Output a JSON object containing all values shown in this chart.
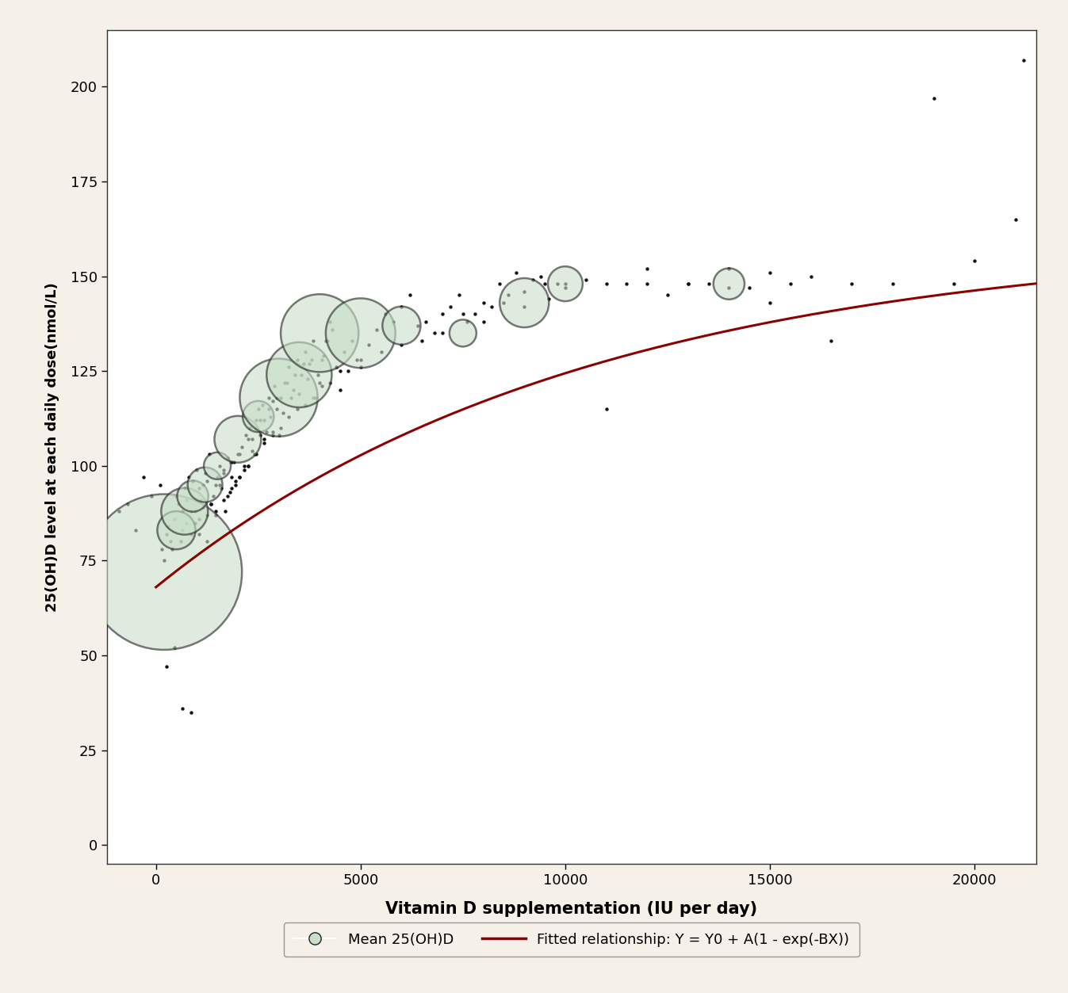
{
  "background_color": "#f5f0e8",
  "plot_bg_color": "#ffffff",
  "xlabel": "Vitamin D supplementation (IU per day)",
  "ylabel": "25(OH)D level at each daily dose(nmol/L)",
  "xlabel_fontsize": 15,
  "ylabel_fontsize": 13,
  "xlim": [
    -1200,
    21500
  ],
  "ylim": [
    -5,
    215
  ],
  "xticks": [
    0,
    5000,
    10000,
    15000,
    20000
  ],
  "yticks": [
    0,
    25,
    50,
    75,
    100,
    125,
    150,
    175,
    200
  ],
  "curve_Y0": 68.0,
  "curve_A": 92.0,
  "curve_B": 9.5e-05,
  "curve_color": "#8b0000",
  "curve_linewidth": 2.2,
  "bubble_x": [
    200,
    500,
    700,
    900,
    1200,
    1500,
    2000,
    2500,
    3000,
    3500,
    4000,
    5000,
    6000,
    7500,
    9000,
    10000,
    14000
  ],
  "bubble_y": [
    72,
    83,
    88,
    92,
    95,
    100,
    107,
    113,
    118,
    124,
    135,
    135,
    137,
    135,
    143,
    148,
    148
  ],
  "bubble_size": [
    20000,
    1200,
    1800,
    800,
    1000,
    600,
    1800,
    800,
    5000,
    3500,
    5000,
    4000,
    1200,
    600,
    2000,
    1000,
    800
  ],
  "bubble_facecolor": "#c8dfc8",
  "bubble_edgecolor": "#222222",
  "bubble_alpha": 0.6,
  "bubble_linewidth": 1.8,
  "scatter_x": [
    -900,
    -700,
    -500,
    -300,
    -100,
    100,
    200,
    300,
    400,
    500,
    600,
    650,
    700,
    750,
    800,
    850,
    900,
    950,
    1000,
    1050,
    1100,
    1150,
    1200,
    1250,
    1300,
    1350,
    1400,
    1450,
    1500,
    1550,
    1600,
    1650,
    1700,
    1750,
    1800,
    1850,
    1900,
    1950,
    2000,
    2050,
    2100,
    2150,
    2200,
    2250,
    2300,
    2350,
    2400,
    2450,
    2500,
    2550,
    2600,
    2650,
    2700,
    2750,
    2800,
    2850,
    2900,
    2950,
    3000,
    3100,
    3200,
    3300,
    3400,
    3500,
    3600,
    3700,
    3800,
    3900,
    4000,
    4100,
    4200,
    4300,
    4400,
    4500,
    4600,
    4700,
    4800,
    4900,
    5000,
    5200,
    5400,
    5600,
    5800,
    6000,
    6200,
    6400,
    6600,
    6800,
    7000,
    7200,
    7400,
    7600,
    7800,
    8000,
    8200,
    8400,
    8600,
    8800,
    9000,
    9200,
    9400,
    9600,
    9800,
    10000,
    10500,
    11000,
    11500,
    12000,
    12500,
    13000,
    13500,
    14000,
    14500,
    15000,
    15500,
    16000,
    16500,
    17000,
    18000,
    19000,
    19500,
    20000,
    21000,
    21200,
    150,
    250,
    350,
    450,
    550,
    650,
    750,
    850,
    950,
    1050,
    1150,
    1250,
    1350,
    1450,
    1550,
    1650,
    1750,
    1850,
    1950,
    2050,
    2150,
    2250,
    2350,
    2450,
    2550,
    2650,
    2750,
    2850,
    2950,
    3050,
    3150,
    3250,
    3350,
    3450,
    3550,
    3650,
    3750,
    3850,
    3950,
    4050,
    4150,
    4250,
    250,
    450,
    650,
    850,
    1050,
    1250,
    1450,
    1650,
    1850,
    2050,
    2250,
    2450,
    2650,
    2850,
    3050,
    3250,
    3450,
    3650,
    3850,
    4050,
    4250,
    4500,
    5000,
    5500,
    6000,
    6500,
    7000,
    7500,
    8000,
    8500,
    9000,
    9500,
    10000,
    11000,
    12000,
    13000,
    14000,
    15000
  ],
  "scatter_y": [
    88,
    90,
    83,
    97,
    92,
    95,
    75,
    84,
    78,
    92,
    80,
    88,
    94,
    85,
    97,
    82,
    96,
    88,
    99,
    86,
    91,
    95,
    98,
    87,
    103,
    90,
    92,
    95,
    97,
    100,
    94,
    99,
    88,
    102,
    93,
    97,
    101,
    96,
    103,
    97,
    105,
    99,
    108,
    100,
    110,
    107,
    103,
    112,
    115,
    108,
    116,
    112,
    109,
    118,
    113,
    117,
    121,
    115,
    108,
    114,
    122,
    118,
    124,
    119,
    127,
    123,
    128,
    118,
    122,
    129,
    133,
    136,
    126,
    120,
    130,
    125,
    133,
    128,
    128,
    132,
    136,
    140,
    138,
    142,
    145,
    137,
    138,
    135,
    140,
    142,
    145,
    138,
    140,
    143,
    142,
    148,
    145,
    151,
    146,
    149,
    150,
    144,
    148,
    148,
    149,
    115,
    148,
    148,
    145,
    148,
    148,
    152,
    147,
    143,
    148,
    150,
    133,
    148,
    148,
    197,
    148,
    154,
    165,
    207,
    78,
    82,
    80,
    86,
    90,
    83,
    91,
    88,
    85,
    94,
    89,
    96,
    90,
    88,
    95,
    98,
    92,
    101,
    95,
    103,
    100,
    107,
    104,
    110,
    112,
    106,
    115,
    109,
    118,
    118,
    122,
    126,
    120,
    128,
    124,
    130,
    127,
    133,
    124,
    128,
    133,
    138,
    47,
    52,
    36,
    35,
    82,
    80,
    87,
    91,
    94,
    97,
    100,
    103,
    107,
    108,
    110,
    113,
    115,
    116,
    118,
    121,
    122,
    125,
    126,
    130,
    132,
    133,
    135,
    140,
    138,
    143,
    142,
    148,
    147,
    148,
    152,
    148,
    147,
    151,
    147
  ],
  "scatter_color": "#111111",
  "scatter_size": 10,
  "legend_label1": "Mean 25(OH)D",
  "legend_label2": "Fitted relationship: Y = Y0 + A(1 - exp(-BX))",
  "legend_fontsize": 13,
  "tick_fontsize": 13
}
